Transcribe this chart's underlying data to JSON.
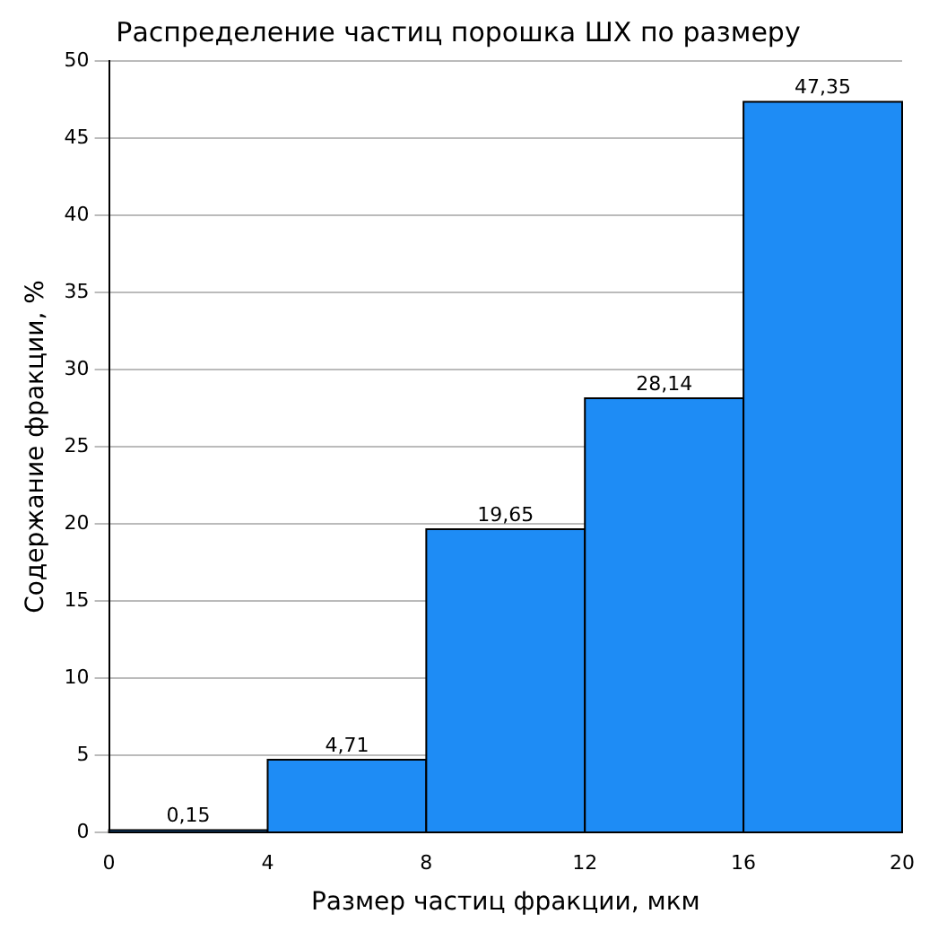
{
  "chart_data": {
    "type": "histogram",
    "title": "Распределение частиц порошка ШХ по размеру",
    "xlabel": "Размер частиц фракции, мкм",
    "ylabel": "Содержание фракции, %",
    "bins": [
      0,
      4,
      8,
      12,
      16,
      20
    ],
    "values": [
      0.15,
      4.71,
      19.65,
      28.14,
      47.35
    ],
    "value_labels": [
      "0,15",
      "4,71",
      "19,65",
      "28,14",
      "47,35"
    ],
    "color": "#1e8cf5",
    "xlim": [
      0,
      20
    ],
    "xticks": [
      0,
      4,
      8,
      12,
      16,
      20
    ],
    "ylim": [
      0,
      50
    ],
    "yticks": [
      0,
      5,
      10,
      15,
      20,
      25,
      30,
      35,
      40,
      45,
      50
    ],
    "grid": "y",
    "legend": false
  }
}
